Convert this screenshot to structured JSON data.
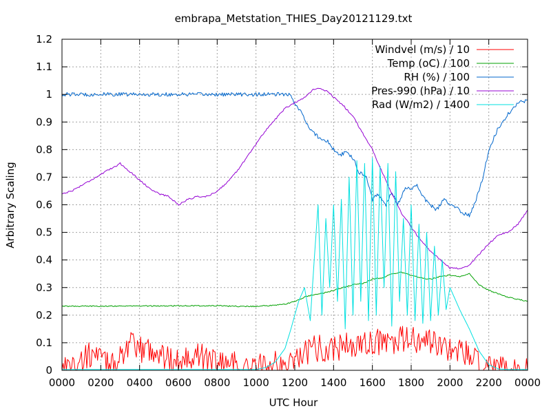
{
  "chart_data": {
    "type": "line",
    "title": "embrapa_Metstation_THIES_Day20121129.txt",
    "xlabel": "UTC Hour",
    "ylabel": "Arbitrary Scaling",
    "xlim": [
      0,
      24
    ],
    "ylim": [
      0,
      1.2
    ],
    "x_ticks": [
      0,
      2,
      4,
      6,
      8,
      10,
      12,
      14,
      16,
      18,
      20,
      22,
      24
    ],
    "x_tick_labels": [
      "0000",
      "0200",
      "0400",
      "0600",
      "0800",
      "1000",
      "1200",
      "1400",
      "1600",
      "1800",
      "2000",
      "2200",
      "0000"
    ],
    "y_ticks": [
      0,
      0.1,
      0.2,
      0.3,
      0.4,
      0.5,
      0.6,
      0.7,
      0.8,
      0.9,
      1.0,
      1.1,
      1.2
    ],
    "y_tick_labels": [
      "0",
      "0.1",
      "0.2",
      "0.3",
      "0.4",
      "0.5",
      "0.6",
      "0.7",
      "0.8",
      "0.9",
      "1",
      "1.1",
      "1.2"
    ],
    "grid": true,
    "legend_position": "top-right",
    "series": [
      {
        "name": "Windvel (m/s) / 10",
        "color": "#ff0000",
        "noise": 0.05,
        "x": [
          0,
          0.5,
          1,
          1.5,
          2,
          2.5,
          3,
          3.5,
          4,
          4.5,
          5,
          5.5,
          6,
          6.5,
          7,
          7.5,
          8,
          8.5,
          9,
          9.5,
          10,
          10.5,
          11,
          11.5,
          12,
          12.5,
          13,
          13.5,
          14,
          14.5,
          15,
          15.5,
          16,
          16.5,
          17,
          17.5,
          18,
          18.5,
          19,
          19.5,
          20,
          20.5,
          21,
          21.5,
          22,
          22.5,
          23,
          23.5,
          24
        ],
        "y": [
          0.02,
          0.01,
          0.03,
          0.06,
          0.04,
          0.01,
          0.06,
          0.09,
          0.07,
          0.08,
          0.06,
          0.04,
          0.03,
          0.06,
          0.05,
          0.04,
          0.04,
          0.03,
          0.02,
          0.0,
          0.01,
          0.02,
          0.02,
          0.01,
          0.05,
          0.06,
          0.08,
          0.08,
          0.08,
          0.09,
          0.09,
          0.09,
          0.1,
          0.1,
          0.1,
          0.11,
          0.11,
          0.1,
          0.1,
          0.09,
          0.08,
          0.07,
          0.05,
          0.02,
          0.0,
          0.0,
          0.0,
          0.0,
          0.0
        ]
      },
      {
        "name": "Temp (oC) / 100",
        "color": "#00a000",
        "noise": 0.002,
        "x": [
          0,
          2,
          4,
          6,
          8,
          9,
          10,
          11,
          11.5,
          12,
          12.5,
          13,
          13.5,
          14,
          14.5,
          15,
          15.5,
          16,
          16.5,
          17,
          17.5,
          18,
          18.5,
          19,
          19.5,
          20,
          20.5,
          21,
          21.5,
          22,
          23,
          24
        ],
        "y": [
          0.232,
          0.233,
          0.233,
          0.234,
          0.234,
          0.232,
          0.232,
          0.236,
          0.24,
          0.25,
          0.265,
          0.275,
          0.28,
          0.29,
          0.3,
          0.31,
          0.315,
          0.33,
          0.335,
          0.35,
          0.355,
          0.345,
          0.335,
          0.33,
          0.34,
          0.345,
          0.34,
          0.35,
          0.31,
          0.29,
          0.265,
          0.25
        ]
      },
      {
        "name": "RH (%) / 100",
        "color": "#0066cc",
        "noise": 0.007,
        "x": [
          0,
          2,
          4,
          6,
          8,
          10,
          11,
          11.7,
          12,
          12.3,
          12.7,
          13,
          13.3,
          13.7,
          14,
          14.3,
          14.7,
          15,
          15.3,
          15.7,
          16,
          16.3,
          16.7,
          17,
          17.3,
          17.7,
          18,
          18.3,
          18.7,
          19,
          19.3,
          19.7,
          20,
          20.3,
          20.7,
          21,
          21.3,
          21.7,
          22,
          22.5,
          23,
          23.5,
          24
        ],
        "y": [
          1.0,
          1.0,
          1.0,
          1.0,
          1.0,
          1.0,
          1.0,
          1.0,
          0.97,
          0.94,
          0.88,
          0.86,
          0.84,
          0.83,
          0.8,
          0.78,
          0.79,
          0.77,
          0.72,
          0.7,
          0.62,
          0.64,
          0.6,
          0.65,
          0.6,
          0.66,
          0.66,
          0.67,
          0.62,
          0.6,
          0.58,
          0.62,
          0.6,
          0.59,
          0.57,
          0.56,
          0.61,
          0.7,
          0.8,
          0.88,
          0.93,
          0.97,
          0.98
        ]
      },
      {
        "name": "Pres-990 (hPa) / 10",
        "color": "#9400d3",
        "noise": 0.003,
        "x": [
          0,
          0.5,
          1,
          1.5,
          2,
          2.5,
          3,
          3.5,
          4,
          4.5,
          5,
          5.5,
          6,
          6.5,
          7,
          7.5,
          8,
          8.5,
          9,
          9.5,
          10,
          10.5,
          11,
          11.5,
          12,
          12.5,
          13,
          13.3,
          13.7,
          14,
          14.5,
          15,
          15.5,
          16,
          16.5,
          17,
          17.5,
          18,
          18.5,
          19,
          19.5,
          20,
          20.5,
          21,
          21.5,
          22,
          22.5,
          23,
          23.5,
          24
        ],
        "y": [
          0.64,
          0.65,
          0.67,
          0.69,
          0.71,
          0.73,
          0.75,
          0.72,
          0.69,
          0.66,
          0.64,
          0.63,
          0.6,
          0.62,
          0.63,
          0.63,
          0.65,
          0.68,
          0.72,
          0.77,
          0.82,
          0.87,
          0.91,
          0.95,
          0.97,
          0.99,
          1.02,
          1.02,
          1.01,
          0.99,
          0.96,
          0.92,
          0.86,
          0.8,
          0.72,
          0.64,
          0.57,
          0.52,
          0.47,
          0.43,
          0.4,
          0.37,
          0.37,
          0.38,
          0.42,
          0.46,
          0.49,
          0.5,
          0.53,
          0.58
        ]
      },
      {
        "name": "Rad (W/m2) / 1400",
        "color": "#00e0e0",
        "noise": 0.0,
        "x": [
          0,
          6,
          10,
          10.5,
          11,
          11.5,
          11.8,
          12,
          12.2,
          12.5,
          12.8,
          13,
          13.2,
          13.4,
          13.6,
          13.8,
          14,
          14.2,
          14.4,
          14.6,
          14.8,
          15,
          15.2,
          15.4,
          15.6,
          15.8,
          16,
          16.2,
          16.4,
          16.6,
          16.8,
          17,
          17.2,
          17.4,
          17.6,
          17.8,
          18,
          18.2,
          18.4,
          18.6,
          18.8,
          19,
          19.2,
          19.4,
          19.6,
          19.8,
          20,
          20.5,
          21,
          21.5,
          22,
          22.5,
          23,
          24
        ],
        "y": [
          0.003,
          0.003,
          0.003,
          0.01,
          0.03,
          0.08,
          0.15,
          0.2,
          0.25,
          0.3,
          0.18,
          0.4,
          0.6,
          0.2,
          0.55,
          0.3,
          0.6,
          0.25,
          0.62,
          0.15,
          0.7,
          0.2,
          0.76,
          0.25,
          0.75,
          0.18,
          0.77,
          0.2,
          0.74,
          0.3,
          0.75,
          0.16,
          0.72,
          0.25,
          0.55,
          0.2,
          0.6,
          0.18,
          0.53,
          0.17,
          0.5,
          0.18,
          0.45,
          0.2,
          0.4,
          0.22,
          0.3,
          0.22,
          0.15,
          0.07,
          0.02,
          0.005,
          0.003,
          0.003
        ]
      }
    ]
  }
}
